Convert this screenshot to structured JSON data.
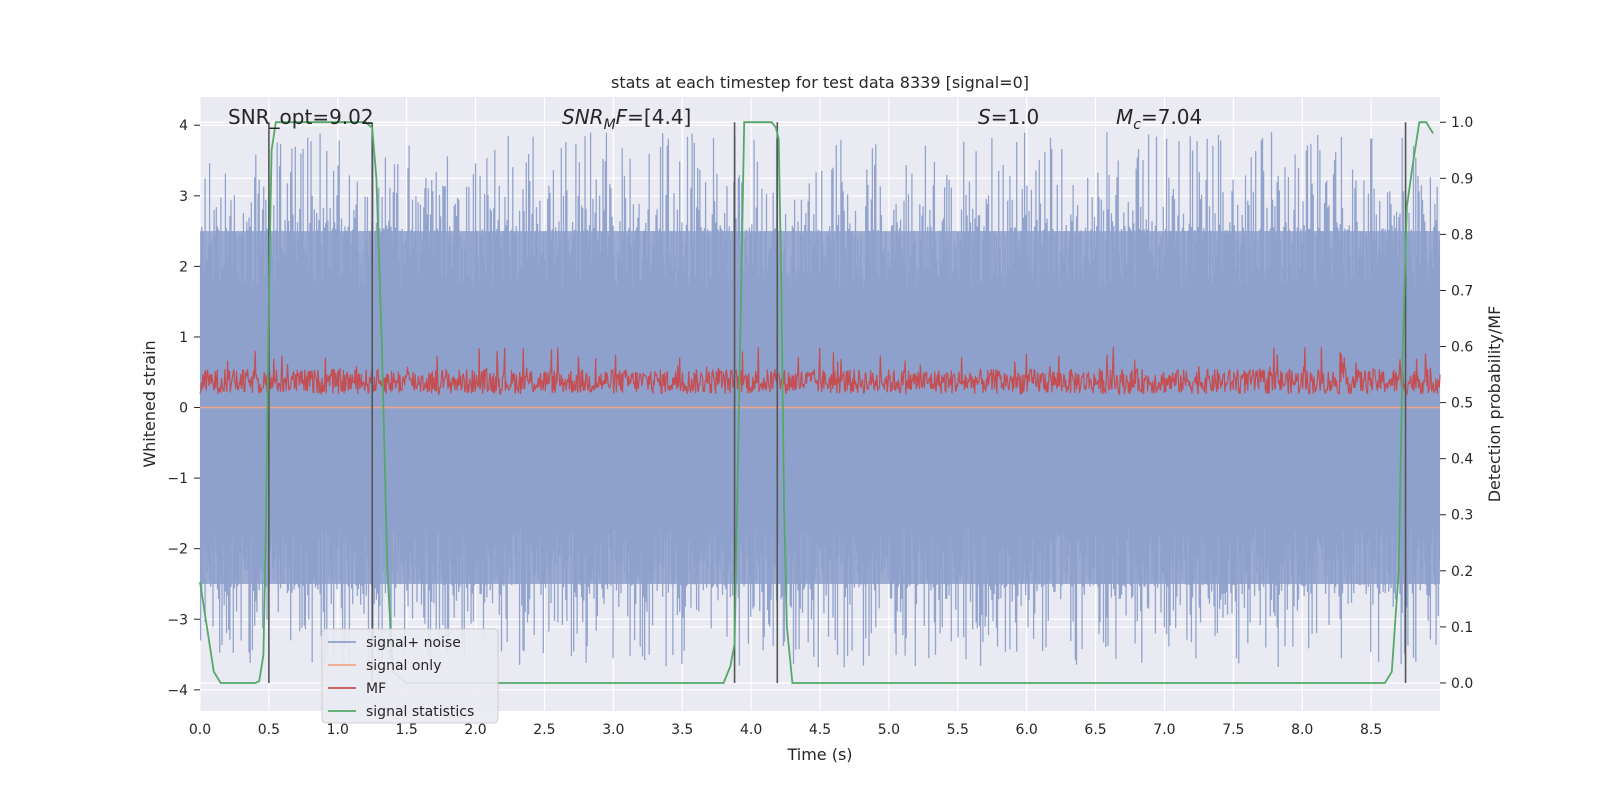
{
  "chart_data": {
    "type": "line",
    "title": "stats at each timestep for test data 8339 [signal=0]",
    "xlabel": "Time (s)",
    "ylabel": "Whitened strain",
    "ylabel_right": "Detection probability/MF",
    "xlim": [
      0.0,
      9.0
    ],
    "ylim": [
      -4.3,
      4.4
    ],
    "ylim_right": [
      -0.05,
      1.045
    ],
    "grid": true,
    "x_ticks": [
      "0.0",
      "0.5",
      "1.0",
      "1.5",
      "2.0",
      "2.5",
      "3.0",
      "3.5",
      "4.0",
      "4.5",
      "5.0",
      "5.5",
      "6.0",
      "6.5",
      "7.0",
      "7.5",
      "8.0",
      "8.5"
    ],
    "y_ticks": [
      "4",
      "3",
      "2",
      "1",
      "0",
      "−1",
      "−2",
      "−3",
      "−4"
    ],
    "y_ticks_right": [
      "1.0",
      "0.9",
      "0.8",
      "0.7",
      "0.6",
      "0.5",
      "0.4",
      "0.3",
      "0.2",
      "0.1",
      "0.0"
    ],
    "legend_placement": "lower-left",
    "annotations": [
      {
        "id": "snr_opt",
        "text": "SNR_opt=9.02"
      },
      {
        "id": "snr_mf",
        "base": "SNR",
        "sub": "M",
        "rest": "F=[4.4]"
      },
      {
        "id": "s",
        "base": "S",
        "rest": "=1.0"
      },
      {
        "id": "mc",
        "base": "M",
        "sub": "c",
        "rest": "=7.04"
      }
    ],
    "series": [
      {
        "name": "signal+ noise",
        "color": "#8da0cb",
        "kind": "noise",
        "envelope": [
          -2.5,
          2.5
        ],
        "peak_range": [
          -3.7,
          3.9
        ]
      },
      {
        "name": "signal only",
        "color": "#f0a58a",
        "kind": "flat",
        "value": 0.0
      },
      {
        "name": "MF",
        "color": "#c44e52",
        "kind": "noise_right",
        "range_right": [
          0.5,
          0.6
        ]
      },
      {
        "name": "signal statistics",
        "color": "#55a868",
        "kind": "line_right",
        "x": [
          0.0,
          0.05,
          0.1,
          0.15,
          0.2,
          0.3,
          0.4,
          0.43,
          0.46,
          0.48,
          0.5,
          0.52,
          0.55,
          0.6,
          0.8,
          1.0,
          1.2,
          1.25,
          1.28,
          1.32,
          1.36,
          1.4,
          1.5,
          2.0,
          3.0,
          3.5,
          3.8,
          3.85,
          3.88,
          3.92,
          3.95,
          4.0,
          4.1,
          4.15,
          4.18,
          4.2,
          4.22,
          4.24,
          4.26,
          4.3,
          4.5,
          5.0,
          6.0,
          7.0,
          8.0,
          8.5,
          8.6,
          8.65,
          8.7,
          8.73,
          8.76,
          8.8,
          8.85,
          8.9,
          8.95
        ],
        "y": [
          0.18,
          0.1,
          0.02,
          0.0,
          0.0,
          0.0,
          0.0,
          0.003,
          0.05,
          0.3,
          0.7,
          0.95,
          1.0,
          1.0,
          1.0,
          1.0,
          1.0,
          0.99,
          0.9,
          0.6,
          0.2,
          0.02,
          0.0,
          0.0,
          0.0,
          0.0,
          0.0,
          0.03,
          0.07,
          0.6,
          1.0,
          1.0,
          1.0,
          1.0,
          0.99,
          0.97,
          0.7,
          0.3,
          0.1,
          0.0,
          0.0,
          0.0,
          0.0,
          0.0,
          0.0,
          0.0,
          0.0,
          0.02,
          0.2,
          0.6,
          0.85,
          0.92,
          1.0,
          1.0,
          0.98
        ]
      },
      {
        "name": "decision_markers",
        "kind": "vlines",
        "x": [
          0.5,
          1.25,
          3.88,
          4.19,
          8.75
        ]
      }
    ]
  }
}
